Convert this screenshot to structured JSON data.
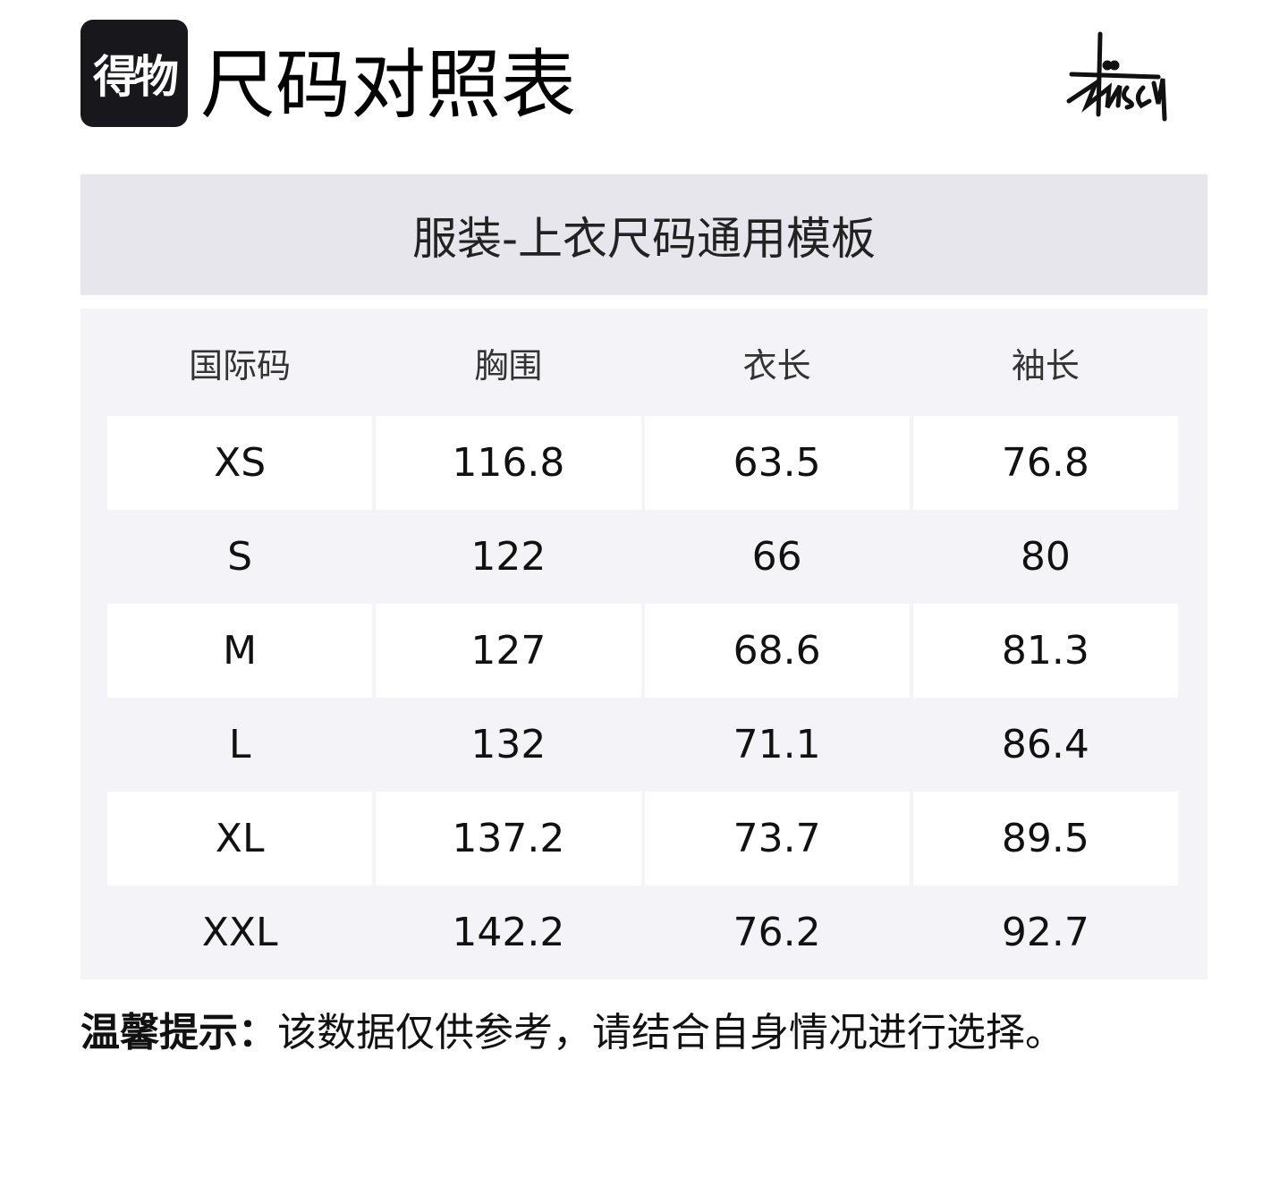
{
  "header": {
    "logo_text": "得物",
    "title": "尺码对照表",
    "brand_logo": "Stussy"
  },
  "template_title": "服装-上衣尺码通用模板",
  "table": {
    "columns": [
      "国际码",
      "胸围",
      "衣长",
      "袖长"
    ],
    "rows": [
      [
        "XS",
        "116.8",
        "63.5",
        "76.8"
      ],
      [
        "S",
        "122",
        "66",
        "80"
      ],
      [
        "M",
        "127",
        "68.6",
        "81.3"
      ],
      [
        "L",
        "132",
        "71.1",
        "86.4"
      ],
      [
        "XL",
        "137.2",
        "73.7",
        "89.5"
      ],
      [
        "XXL",
        "142.2",
        "76.2",
        "92.7"
      ]
    ]
  },
  "note": {
    "label": "温馨提示：",
    "text": "该数据仅供参考，请结合自身情况进行选择。"
  }
}
